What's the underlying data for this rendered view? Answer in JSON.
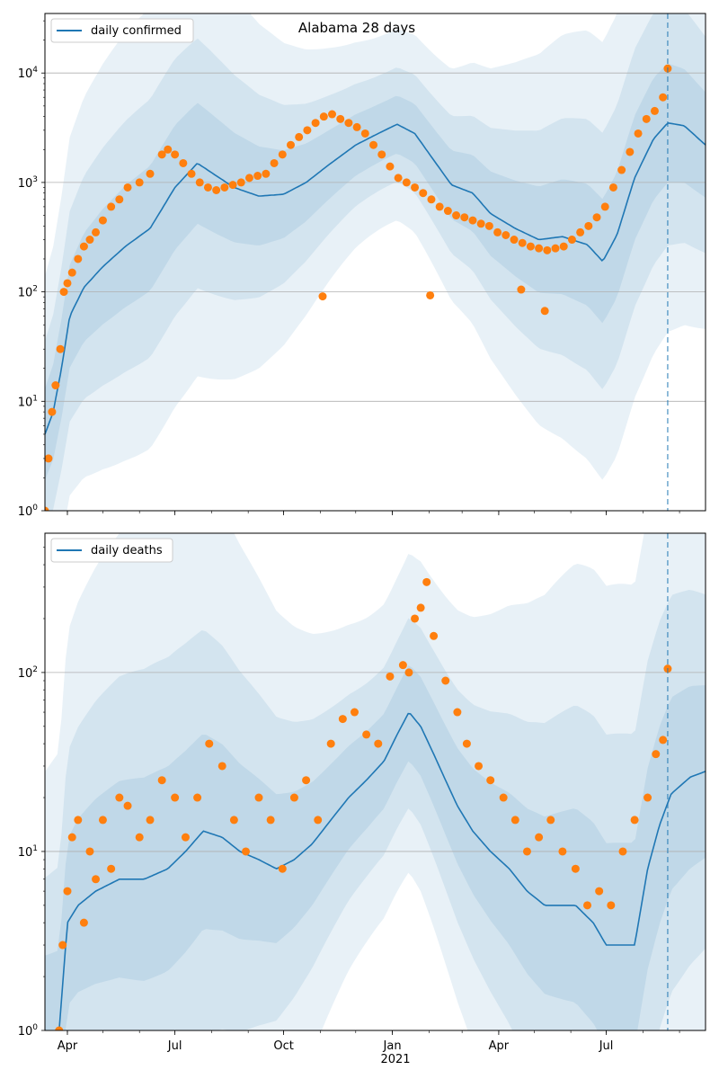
{
  "title": "Alabama 28 days",
  "x_tick_labels": [
    "Apr",
    "Jul",
    "Oct",
    "Jan",
    "Apr",
    "Jul"
  ],
  "x_year_label": "2021",
  "colors": {
    "line": "#1f77b4",
    "points": "#ff7f0e",
    "band": "#1f77b4",
    "grid": "#b0b0b0",
    "vline": "#1f77b4"
  },
  "chart_data": [
    {
      "type": "line",
      "title": "Alabama 28 days",
      "legend": "daily confirmed",
      "legend_position": "top-left",
      "yscale": "log",
      "ylim": [
        1,
        35000
      ],
      "xlim": [
        "2020-03-13",
        "2021-09-23"
      ],
      "grid": "y",
      "y_tick_labels": [
        "10^0",
        "10^1",
        "10^2",
        "10^3",
        "10^4"
      ],
      "vline_date": "2021-08-22",
      "series": [
        {
          "name": "daily confirmed",
          "kind": "model_median",
          "x": [
            "2020-03-13",
            "2020-03-20",
            "2020-03-27",
            "2020-04-03",
            "2020-04-15",
            "2020-05-01",
            "2020-05-20",
            "2020-06-10",
            "2020-07-01",
            "2020-07-20",
            "2020-08-05",
            "2020-08-20",
            "2020-09-10",
            "2020-10-01",
            "2020-10-20",
            "2020-11-10",
            "2020-12-01",
            "2020-12-20",
            "2021-01-05",
            "2021-01-20",
            "2021-02-05",
            "2021-02-20",
            "2021-03-10",
            "2021-03-25",
            "2021-04-15",
            "2021-05-05",
            "2021-05-25",
            "2021-06-15",
            "2021-06-28",
            "2021-07-10",
            "2021-07-25",
            "2021-08-10",
            "2021-08-22",
            "2021-09-05",
            "2021-09-23"
          ],
          "values": [
            5,
            8,
            20,
            60,
            110,
            170,
            260,
            380,
            900,
            1500,
            1150,
            900,
            750,
            780,
            1000,
            1500,
            2200,
            2800,
            3400,
            2800,
            1600,
            950,
            800,
            520,
            380,
            300,
            320,
            270,
            190,
            330,
            1100,
            2500,
            3500,
            3300,
            2200
          ]
        },
        {
          "name": "observed",
          "kind": "points",
          "x": [
            "2020-03-13",
            "2020-03-16",
            "2020-03-19",
            "2020-03-22",
            "2020-03-26",
            "2020-03-29",
            "2020-04-01",
            "2020-04-05",
            "2020-04-10",
            "2020-04-15",
            "2020-04-20",
            "2020-04-25",
            "2020-05-01",
            "2020-05-08",
            "2020-05-15",
            "2020-05-22",
            "2020-06-01",
            "2020-06-10",
            "2020-06-20",
            "2020-06-25",
            "2020-07-01",
            "2020-07-08",
            "2020-07-15",
            "2020-07-22",
            "2020-07-29",
            "2020-08-05",
            "2020-08-12",
            "2020-08-19",
            "2020-08-26",
            "2020-09-02",
            "2020-09-09",
            "2020-09-16",
            "2020-09-23",
            "2020-09-30",
            "2020-10-07",
            "2020-10-14",
            "2020-10-21",
            "2020-10-28",
            "2020-11-04",
            "2020-11-11",
            "2020-11-18",
            "2020-11-25",
            "2020-12-02",
            "2020-12-09",
            "2020-12-16",
            "2020-12-23",
            "2020-12-30",
            "2021-01-06",
            "2021-01-13",
            "2021-01-20",
            "2021-01-27",
            "2021-02-03",
            "2021-02-10",
            "2021-02-17",
            "2021-02-24",
            "2021-03-03",
            "2021-03-10",
            "2021-03-17",
            "2021-03-24",
            "2021-03-31",
            "2021-04-07",
            "2021-04-14",
            "2021-04-21",
            "2021-04-28",
            "2021-05-05",
            "2021-05-12",
            "2021-05-19",
            "2021-05-26",
            "2021-06-02",
            "2021-06-09",
            "2021-06-16",
            "2021-06-23",
            "2021-06-30",
            "2021-07-07",
            "2021-07-14",
            "2021-07-21",
            "2021-07-28",
            "2021-08-04",
            "2021-08-11",
            "2021-08-18",
            "2021-08-22",
            "2021-02-02",
            "2020-11-03",
            "2021-04-20",
            "2021-05-10"
          ],
          "values": [
            1,
            3,
            8,
            14,
            30,
            100,
            120,
            150,
            200,
            260,
            300,
            350,
            450,
            600,
            700,
            900,
            1000,
            1200,
            1800,
            2000,
            1800,
            1500,
            1200,
            1000,
            900,
            850,
            900,
            950,
            1000,
            1100,
            1150,
            1200,
            1500,
            1800,
            2200,
            2600,
            3000,
            3500,
            4000,
            4200,
            3800,
            3500,
            3200,
            2800,
            2200,
            1800,
            1400,
            1100,
            1000,
            900,
            800,
            700,
            600,
            550,
            500,
            480,
            450,
            420,
            400,
            350,
            330,
            300,
            280,
            260,
            250,
            240,
            250,
            260,
            300,
            350,
            400,
            480,
            600,
            900,
            1300,
            1900,
            2800,
            3800,
            4500,
            6000,
            11000,
            93,
            91,
            105,
            67
          ]
        }
      ]
    },
    {
      "type": "line",
      "legend": "daily deaths",
      "legend_position": "top-left",
      "yscale": "log",
      "ylim": [
        1,
        600
      ],
      "xlim": [
        "2020-03-13",
        "2021-09-23"
      ],
      "grid": "y",
      "y_tick_labels": [
        "10^0",
        "10^1",
        "10^2"
      ],
      "vline_date": "2021-08-22",
      "series": [
        {
          "name": "daily deaths",
          "kind": "model_median",
          "x": [
            "2020-03-25",
            "2020-04-01",
            "2020-04-10",
            "2020-04-25",
            "2020-05-15",
            "2020-06-05",
            "2020-06-25",
            "2020-07-10",
            "2020-07-25",
            "2020-08-10",
            "2020-08-25",
            "2020-09-10",
            "2020-09-25",
            "2020-10-10",
            "2020-10-25",
            "2020-11-10",
            "2020-11-25",
            "2020-12-10",
            "2020-12-25",
            "2021-01-05",
            "2021-01-15",
            "2021-01-25",
            "2021-02-05",
            "2021-02-15",
            "2021-02-25",
            "2021-03-10",
            "2021-03-25",
            "2021-04-10",
            "2021-04-25",
            "2021-05-10",
            "2021-05-25",
            "2021-06-05",
            "2021-06-20",
            "2021-07-01",
            "2021-07-10",
            "2021-07-25",
            "2021-08-05",
            "2021-08-15",
            "2021-08-25",
            "2021-09-10",
            "2021-09-23"
          ],
          "values": [
            1,
            4,
            5,
            6,
            7,
            7,
            8,
            10,
            13,
            12,
            10,
            9,
            8,
            9,
            11,
            15,
            20,
            25,
            32,
            45,
            60,
            50,
            35,
            25,
            18,
            13,
            10,
            8,
            6,
            5,
            5,
            5,
            4,
            3,
            3,
            3,
            8,
            14,
            21,
            26,
            28
          ]
        },
        {
          "name": "observed",
          "kind": "points",
          "x": [
            "2020-03-25",
            "2020-03-28",
            "2020-04-01",
            "2020-04-05",
            "2020-04-10",
            "2020-04-15",
            "2020-04-20",
            "2020-04-25",
            "2020-05-01",
            "2020-05-08",
            "2020-05-15",
            "2020-05-22",
            "2020-06-01",
            "2020-06-10",
            "2020-06-20",
            "2020-07-01",
            "2020-07-10",
            "2020-07-20",
            "2020-07-30",
            "2020-08-10",
            "2020-08-20",
            "2020-08-30",
            "2020-09-10",
            "2020-09-20",
            "2020-09-30",
            "2020-10-10",
            "2020-10-20",
            "2020-10-30",
            "2020-11-10",
            "2020-11-20",
            "2020-11-30",
            "2020-12-10",
            "2020-12-20",
            "2020-12-30",
            "2021-01-10",
            "2021-01-15",
            "2021-01-20",
            "2021-01-25",
            "2021-01-30",
            "2021-02-05",
            "2021-02-15",
            "2021-02-25",
            "2021-03-05",
            "2021-03-15",
            "2021-03-25",
            "2021-04-05",
            "2021-04-15",
            "2021-04-25",
            "2021-05-05",
            "2021-05-15",
            "2021-05-25",
            "2021-06-05",
            "2021-06-15",
            "2021-06-25",
            "2021-07-05",
            "2021-07-15",
            "2021-07-25",
            "2021-08-05",
            "2021-08-12",
            "2021-08-18",
            "2021-08-22"
          ],
          "values": [
            1,
            3,
            6,
            12,
            15,
            4,
            10,
            7,
            15,
            8,
            20,
            18,
            12,
            15,
            25,
            20,
            12,
            20,
            40,
            30,
            15,
            10,
            20,
            15,
            8,
            20,
            25,
            15,
            40,
            55,
            60,
            45,
            40,
            95,
            110,
            100,
            200,
            230,
            320,
            160,
            90,
            60,
            40,
            30,
            25,
            20,
            15,
            10,
            12,
            15,
            10,
            8,
            5,
            6,
            5,
            10,
            15,
            20,
            35,
            42,
            105
          ]
        }
      ]
    }
  ]
}
